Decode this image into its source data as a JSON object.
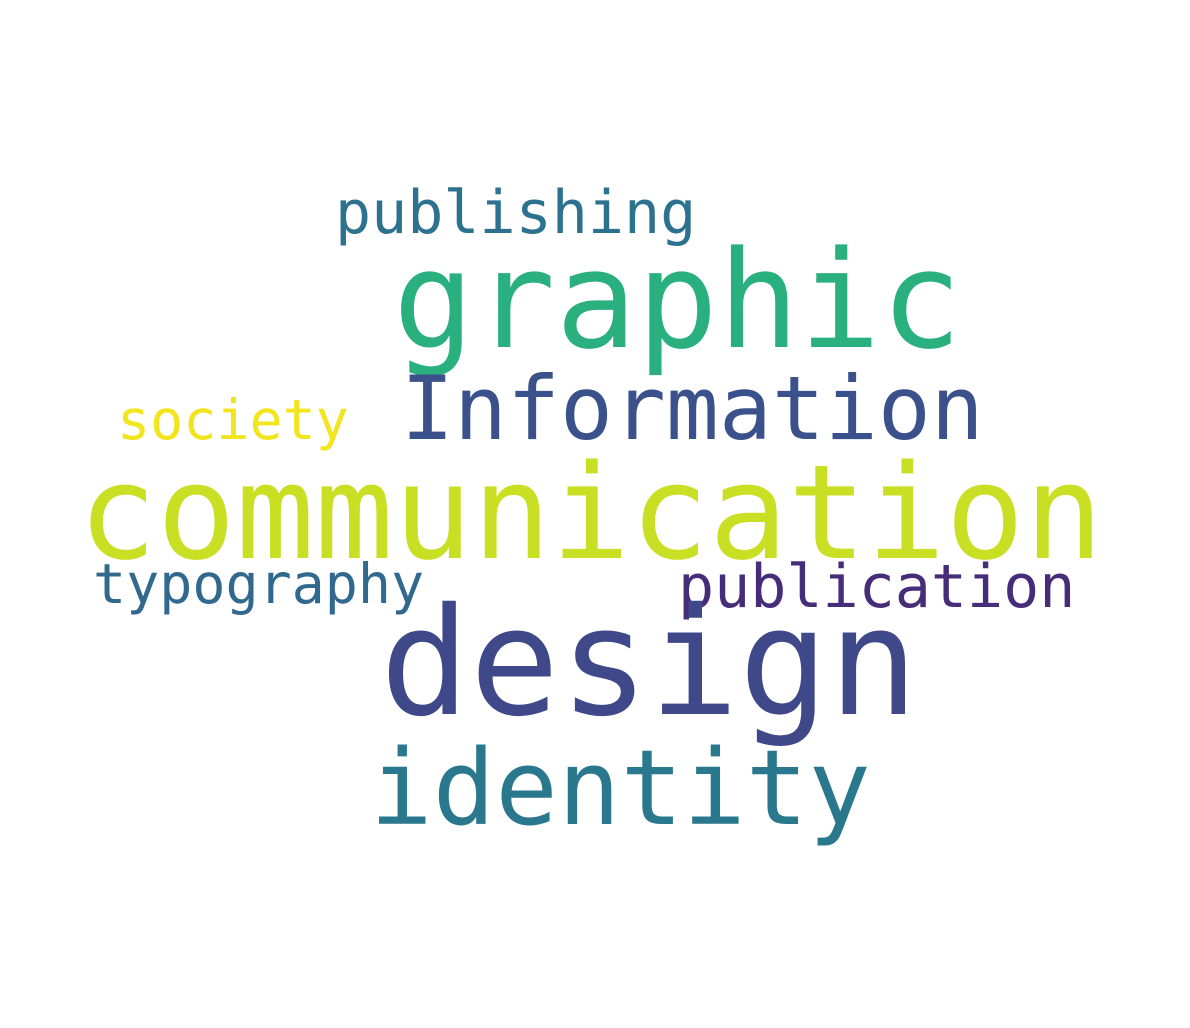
{
  "word_cloud": {
    "words": {
      "communication": {
        "text": "communication",
        "color": "#c8df24"
      },
      "design": {
        "text": "design",
        "color": "#3f4889"
      },
      "graphic": {
        "text": "graphic",
        "color": "#2ab07f"
      },
      "information": {
        "text": "Information",
        "color": "#3b518b"
      },
      "identity": {
        "text": "identity",
        "color": "#2a788e"
      },
      "publication": {
        "text": "publication",
        "color": "#472c7a"
      },
      "publishing": {
        "text": "publishing",
        "color": "#2c728e"
      },
      "typography": {
        "text": "typography",
        "color": "#30688e"
      },
      "society": {
        "text": "society",
        "color": "#f2e51d"
      }
    }
  }
}
